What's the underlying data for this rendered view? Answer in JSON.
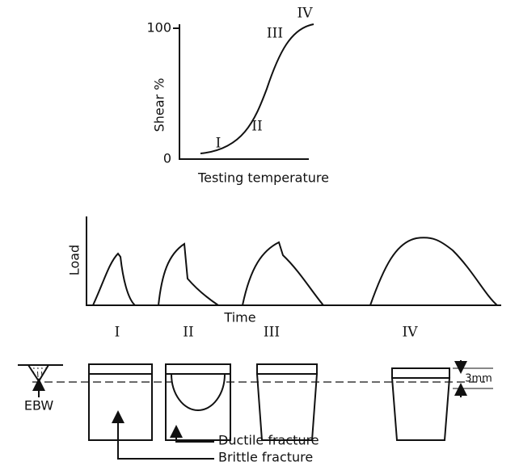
{
  "top_plot": {
    "y_label": "Shear %",
    "x_label": "Testing temperature",
    "y_ticks": [
      100,
      0
    ],
    "stages": [
      "I",
      "II",
      "III",
      "IV"
    ]
  },
  "load_plot": {
    "y_label": "Load",
    "x_label": "Time"
  },
  "specimens": {
    "labels": [
      "I",
      "II",
      "III",
      "IV"
    ],
    "notch_label": "EBW",
    "depth_label": "3mm",
    "annotations": [
      "Ductile fracture",
      "Brittle fracture"
    ]
  }
}
